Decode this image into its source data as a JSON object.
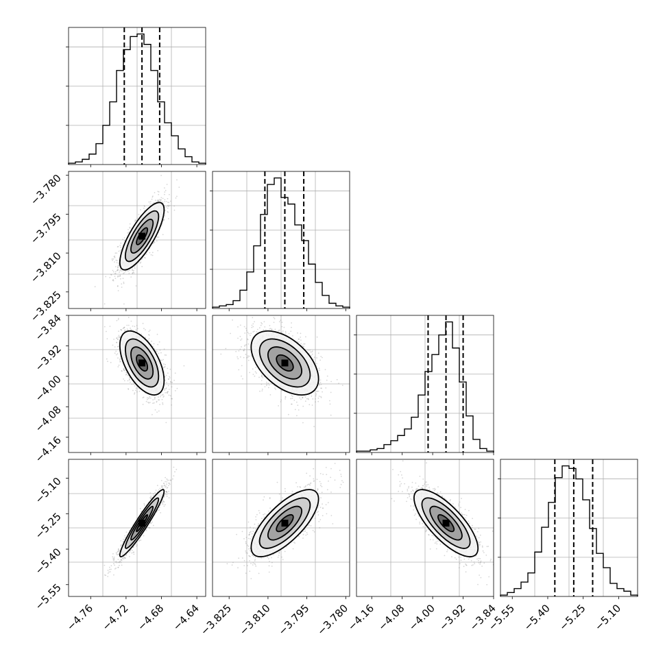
{
  "chart_data": {
    "type": "corner",
    "parameters": [
      {
        "name": "",
        "range": [
          -4.785,
          -4.63
        ],
        "median": -4.702,
        "quantiles": [
          -4.722,
          -4.702,
          -4.682
        ],
        "ticks": [
          -4.76,
          -4.72,
          -4.68,
          -4.64
        ],
        "tick_labels": [
          "−4.76",
          "−4.72",
          "−4.68",
          "−4.64"
        ]
      },
      {
        "name": "",
        "range": [
          -3.8314,
          -3.7785
        ],
        "median": -3.8035,
        "quantiles": [
          -3.8112,
          -3.8035,
          -3.7962
        ],
        "ticks": [
          -3.825,
          -3.81,
          -3.795,
          -3.78
        ],
        "tick_labels": [
          "−3.825",
          "−3.810",
          "−3.795",
          "−3.780"
        ]
      },
      {
        "name": "",
        "range": [
          -4.2,
          -3.84
        ],
        "median": -3.965,
        "quantiles": [
          -4.012,
          -3.965,
          -3.92
        ],
        "ticks": [
          -4.16,
          -4.08,
          -4.0,
          -3.92,
          -3.84
        ],
        "tick_labels": [
          "−4.16",
          "−4.08",
          "−4.00",
          "−3.92",
          "−3.84"
        ]
      },
      {
        "name": "",
        "range": [
          -5.6,
          -5.02
        ],
        "median": -5.29,
        "quantiles": [
          -5.37,
          -5.29,
          -5.21
        ],
        "ticks": [
          -5.55,
          -5.4,
          -5.25,
          -5.1
        ],
        "tick_labels": [
          "−5.55",
          "−5.40",
          "−5.25",
          "−5.10"
        ]
      }
    ],
    "histograms": [
      [
        1,
        2,
        4,
        8,
        16,
        30,
        48,
        72,
        88,
        98,
        100,
        92,
        72,
        48,
        32,
        22,
        12,
        6,
        2,
        1
      ],
      [
        1,
        2,
        3,
        6,
        14,
        28,
        48,
        72,
        95,
        100,
        85,
        80,
        64,
        52,
        34,
        20,
        10,
        4,
        2,
        1
      ],
      [
        1,
        1,
        2,
        3,
        6,
        9,
        13,
        18,
        27,
        44,
        62,
        75,
        90,
        100,
        80,
        54,
        28,
        10,
        3,
        1
      ],
      [
        1,
        3,
        6,
        11,
        18,
        34,
        53,
        72,
        91,
        100,
        98,
        90,
        74,
        52,
        33,
        22,
        10,
        6,
        4,
        1
      ]
    ],
    "correlations": {
      "1,0": 0.78,
      "2,0": -0.55,
      "2,1": -0.5,
      "3,0": 0.95,
      "3,1": 0.72,
      "3,2": -0.75
    },
    "sigmas": [
      0.0125,
      0.0065,
      0.042,
      0.071
    ],
    "contour_levels": [
      0.5,
      1.0,
      1.5,
      2.0
    ],
    "grid": true
  }
}
